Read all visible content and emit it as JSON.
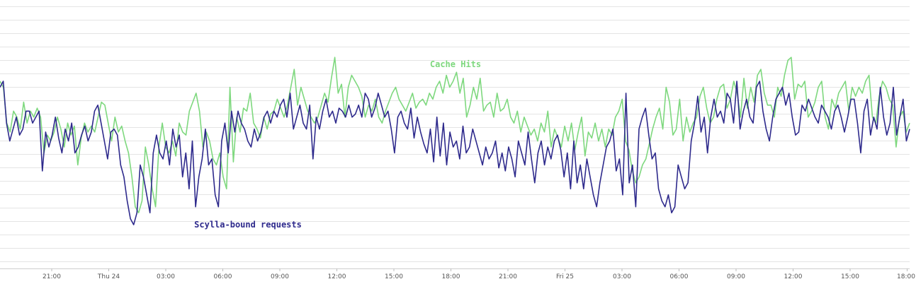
{
  "chart_data": {
    "type": "line",
    "title": "",
    "xlabel": "",
    "ylabel": "",
    "x_tick_labels": [
      "21:00",
      "Thu 24",
      "03:00",
      "06:00",
      "09:00",
      "12:00",
      "15:00",
      "18:00",
      "21:00",
      "Fri 25",
      "03:00",
      "06:00",
      "09:00",
      "12:00",
      "15:00",
      "18:00"
    ],
    "grid": true,
    "legend": "inline labels",
    "ylim": [
      0,
      100
    ],
    "series": [
      {
        "name": "Cache Hits",
        "color": "#7ed87e",
        "values": [
          72,
          70,
          58,
          55,
          62,
          60,
          56,
          65,
          58,
          62,
          60,
          63,
          60,
          48,
          54,
          52,
          55,
          60,
          56,
          50,
          58,
          54,
          57,
          44,
          53,
          58,
          55,
          57,
          55,
          60,
          65,
          64,
          58,
          52,
          60,
          55,
          57,
          52,
          48,
          40,
          30,
          28,
          32,
          50,
          44,
          36,
          30,
          50,
          58,
          50,
          48,
          52,
          47,
          58,
          55,
          54,
          62,
          65,
          68,
          62,
          50,
          55,
          52,
          46,
          44,
          48,
          40,
          36,
          70,
          45,
          60,
          55,
          63,
          62,
          68,
          58,
          56,
          53,
          60,
          56,
          61,
          62,
          66,
          63,
          60,
          64,
          70,
          76,
          64,
          70,
          66,
          62,
          60,
          58,
          60,
          64,
          68,
          65,
          73,
          80,
          68,
          71,
          60,
          70,
          74,
          72,
          70,
          67,
          60,
          64,
          62,
          66,
          60,
          58,
          62,
          65,
          68,
          70,
          66,
          64,
          62,
          65,
          68,
          63,
          65,
          66,
          64,
          68,
          66,
          70,
          72,
          68,
          74,
          70,
          72,
          75,
          68,
          73,
          60,
          64,
          70,
          66,
          73,
          62,
          64,
          65,
          60,
          68,
          62,
          63,
          66,
          60,
          58,
          62,
          55,
          60,
          57,
          54,
          56,
          52,
          58,
          55,
          62,
          50,
          56,
          53,
          50,
          57,
          52,
          58,
          49,
          55,
          60,
          47,
          55,
          53,
          58,
          52,
          56,
          50,
          56,
          54,
          60,
          62,
          66,
          52,
          49,
          42,
          38,
          40,
          44,
          46,
          51,
          56,
          60,
          63,
          56,
          70,
          65,
          54,
          56,
          66,
          52,
          60,
          55,
          58,
          60,
          67,
          70,
          63,
          58,
          60,
          66,
          70,
          71,
          63,
          66,
          72,
          68,
          60,
          73,
          63,
          70,
          65,
          74,
          76,
          68,
          64,
          64,
          60,
          70,
          67,
          74,
          79,
          80,
          66,
          71,
          70,
          72,
          60,
          62,
          65,
          70,
          72,
          60,
          56,
          66,
          63,
          68,
          70,
          72,
          62,
          70,
          67,
          70,
          68,
          72,
          74,
          60,
          58,
          67,
          72,
          70,
          66,
          64,
          50,
          60,
          62,
          55,
          58
        ]
      },
      {
        "name": "Scylla-bound requests",
        "color": "#2e2a8c",
        "values": [
          70,
          72,
          58,
          52,
          56,
          60,
          54,
          56,
          62,
          62,
          58,
          60,
          62,
          42,
          55,
          50,
          54,
          60,
          53,
          48,
          56,
          52,
          58,
          48,
          50,
          54,
          57,
          52,
          55,
          62,
          64,
          58,
          52,
          46,
          55,
          56,
          54,
          44,
          40,
          32,
          26,
          24,
          28,
          44,
          40,
          34,
          28,
          48,
          54,
          48,
          46,
          52,
          44,
          56,
          50,
          54,
          40,
          48,
          36,
          52,
          30,
          40,
          46,
          56,
          44,
          46,
          34,
          30,
          52,
          58,
          48,
          62,
          55,
          62,
          58,
          56,
          52,
          50,
          56,
          52,
          55,
          60,
          62,
          58,
          62,
          60,
          64,
          66,
          60,
          68,
          56,
          60,
          64,
          58,
          56,
          64,
          46,
          60,
          56,
          62,
          66,
          60,
          62,
          58,
          63,
          62,
          60,
          64,
          60,
          61,
          64,
          60,
          68,
          66,
          60,
          63,
          68,
          64,
          60,
          62,
          56,
          48,
          60,
          62,
          58,
          56,
          63,
          53,
          60,
          55,
          51,
          48,
          56,
          45,
          60,
          47,
          58,
          44,
          55,
          50,
          52,
          46,
          57,
          48,
          50,
          56,
          52,
          48,
          44,
          50,
          46,
          48,
          52,
          43,
          48,
          42,
          50,
          46,
          40,
          52,
          48,
          44,
          55,
          46,
          38,
          48,
          52,
          44,
          50,
          46,
          52,
          54,
          49,
          40,
          48,
          36,
          52,
          38,
          44,
          36,
          46,
          40,
          34,
          30,
          38,
          44,
          50,
          52,
          56,
          42,
          46,
          34,
          68,
          38,
          44,
          30,
          56,
          60,
          63,
          54,
          46,
          48,
          36,
          32,
          30,
          34,
          28,
          30,
          44,
          40,
          36,
          38,
          52,
          58,
          67,
          55,
          60,
          48,
          60,
          66,
          60,
          62,
          58,
          68,
          66,
          58,
          72,
          56,
          62,
          66,
          60,
          58,
          70,
          72,
          62,
          56,
          52,
          60,
          66,
          68,
          70,
          64,
          68,
          60,
          54,
          55,
          64,
          62,
          66,
          63,
          60,
          58,
          64,
          62,
          60,
          56,
          62,
          64,
          60,
          55,
          60,
          66,
          66,
          58,
          48,
          62,
          66,
          54,
          60,
          56,
          70,
          60,
          54,
          58,
          70,
          54,
          60,
          66,
          52,
          56
        ]
      }
    ],
    "annotations": [
      {
        "text": "Cache Hits",
        "color": "#7ed87e"
      },
      {
        "text": "Scylla-bound requests",
        "color": "#2e2a8c"
      }
    ]
  }
}
